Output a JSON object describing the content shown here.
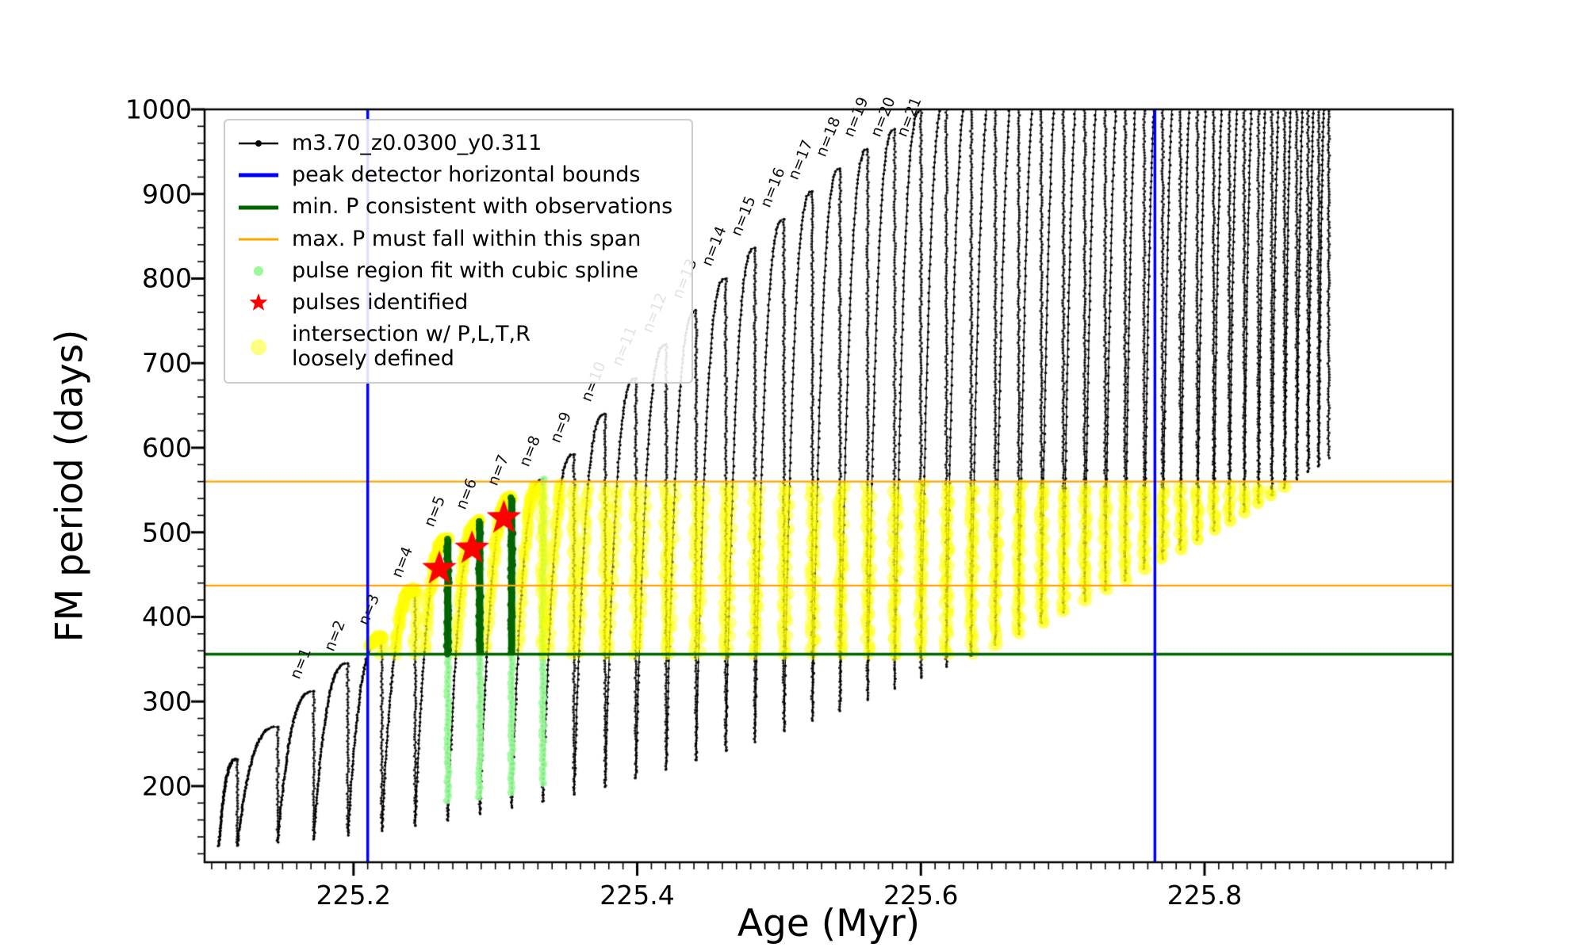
{
  "axis": {
    "xlabel": "Age (Myr)",
    "ylabel": "FM period (days)"
  },
  "legend": {
    "items": [
      {
        "label": "m3.70_z0.0300_y0.311",
        "marker": "line-dot",
        "color": "#000000"
      },
      {
        "label": "peak detector horizontal bounds",
        "marker": "thick-line",
        "color": "#0000ff"
      },
      {
        "label": "min. P consistent with observations",
        "marker": "thick-line",
        "color": "#006400"
      },
      {
        "label": "max. P must fall within this span",
        "marker": "line",
        "color": "#ffa500"
      },
      {
        "label": "pulse region fit with cubic spline",
        "marker": "dot",
        "color": "#98fb98"
      },
      {
        "label": "pulses identified",
        "marker": "star",
        "color": "#ff0000"
      },
      {
        "label": "intersection w/ P,L,T,R",
        "label2": "loosely defined",
        "marker": "big-dot",
        "color": "#ffff00"
      }
    ]
  },
  "chart_data": {
    "type": "scatter",
    "title": "",
    "xlabel": "Age (Myr)",
    "ylabel": "FM period (days)",
    "xlim": [
      225.095,
      225.975
    ],
    "ylim": [
      110,
      1000
    ],
    "x_ticks": [
      {
        "value": 225.2,
        "label": "225.2"
      },
      {
        "value": 225.4,
        "label": "225.4"
      },
      {
        "value": 225.6,
        "label": "225.6"
      },
      {
        "value": 225.8,
        "label": "225.8"
      }
    ],
    "x_minor_step": 0.01,
    "y_ticks": [
      {
        "value": 200,
        "label": "200"
      },
      {
        "value": 300,
        "label": "300"
      },
      {
        "value": 400,
        "label": "400"
      },
      {
        "value": 500,
        "label": "500"
      },
      {
        "value": 600,
        "label": "600"
      },
      {
        "value": 700,
        "label": "700"
      },
      {
        "value": 800,
        "label": "800"
      },
      {
        "value": 900,
        "label": "900"
      },
      {
        "value": 1000,
        "label": "1000"
      }
    ],
    "y_minor_step": 20,
    "series_label": "m3.70_z0.0300_y0.311",
    "vlines": {
      "color": "#0000ff",
      "x": [
        225.21,
        225.765
      ]
    },
    "hlines": {
      "min_P": {
        "y": 356,
        "color": "#006400"
      },
      "max_P_span": {
        "ys": [
          437,
          560
        ],
        "color": "#ffa500"
      }
    },
    "band": {
      "p_min": 356,
      "p_max": 556,
      "age_min": 225.212,
      "age_max": 225.88
    },
    "low_envelope": {
      "base_age": 225.12,
      "c0": 130,
      "c1": 108,
      "c2": 634,
      "floor": 128
    },
    "rise_exponent": 2.8,
    "pulses": [
      {
        "a": 225.118,
        "p": 232
      },
      {
        "a": 225.1465,
        "p": 270
      },
      {
        "a": 225.172,
        "p": 312,
        "n": "n=1"
      },
      {
        "a": 225.196,
        "p": 345,
        "n": "n=2"
      },
      {
        "a": 225.22,
        "p": 376,
        "n": "n=3"
      },
      {
        "a": 225.2435,
        "p": 432,
        "n": "n=4"
      },
      {
        "a": 225.2665,
        "p": 492,
        "n": "n=5"
      },
      {
        "a": 225.289,
        "p": 513,
        "n": "n=6"
      },
      {
        "a": 225.3115,
        "p": 541,
        "n": "n=7"
      },
      {
        "a": 225.3335,
        "p": 563,
        "n": "n=8"
      },
      {
        "a": 225.3555,
        "p": 592,
        "n": "n=9"
      },
      {
        "a": 225.3775,
        "p": 640,
        "n": "n=10"
      },
      {
        "a": 225.399,
        "p": 682,
        "n": "n=11"
      },
      {
        "a": 225.4205,
        "p": 722,
        "n": "n=12"
      },
      {
        "a": 225.4415,
        "p": 762,
        "n": "n=13"
      },
      {
        "a": 225.4625,
        "p": 800,
        "n": "n=14"
      },
      {
        "a": 225.483,
        "p": 836,
        "n": "n=15"
      },
      {
        "a": 225.5035,
        "p": 870,
        "n": "n=16"
      },
      {
        "a": 225.5235,
        "p": 903,
        "n": "n=17"
      },
      {
        "a": 225.543,
        "p": 930,
        "n": "n=18"
      },
      {
        "a": 225.5625,
        "p": 953,
        "n": "n=19"
      },
      {
        "a": 225.5815,
        "p": 976,
        "n": "n=20"
      },
      {
        "a": 225.6,
        "p": 999,
        "n": "n=21"
      },
      {
        "a": 225.618,
        "p": 1016
      },
      {
        "a": 225.6355,
        "p": 1030
      },
      {
        "a": 225.6525,
        "p": 1042
      },
      {
        "a": 225.669,
        "p": 1052
      },
      {
        "a": 225.685,
        "p": 1060
      },
      {
        "a": 225.7005,
        "p": 1066
      },
      {
        "a": 225.7155,
        "p": 1071
      },
      {
        "a": 225.73,
        "p": 1075
      },
      {
        "a": 225.744,
        "p": 1078
      },
      {
        "a": 225.7575,
        "p": 1080
      },
      {
        "a": 225.7705,
        "p": 1081
      },
      {
        "a": 225.783,
        "p": 1082
      },
      {
        "a": 225.795,
        "p": 1082
      },
      {
        "a": 225.8065,
        "p": 1082
      },
      {
        "a": 225.8175,
        "p": 1082
      },
      {
        "a": 225.828,
        "p": 1081
      },
      {
        "a": 225.838,
        "p": 1080
      },
      {
        "a": 225.8475,
        "p": 1079
      },
      {
        "a": 225.8565,
        "p": 1078
      },
      {
        "a": 225.865,
        "p": 1076
      },
      {
        "a": 225.873,
        "p": 1074
      },
      {
        "a": 225.8805,
        "p": 1072
      },
      {
        "a": 225.8875,
        "p": 1070
      }
    ],
    "stars": [
      [
        225.2605,
        457
      ],
      [
        225.2835,
        481
      ],
      [
        225.306,
        517
      ]
    ],
    "spline_columns": [
      5,
      6,
      7,
      8
    ],
    "green_columns": [
      5,
      6,
      7
    ],
    "colors": {
      "series": "#000000",
      "yellow": "#ffff00",
      "palegreen": "#98fb98",
      "green": "#006400",
      "orange": "#ffa500",
      "blue": "#0000ff",
      "red": "#ff0000"
    }
  }
}
